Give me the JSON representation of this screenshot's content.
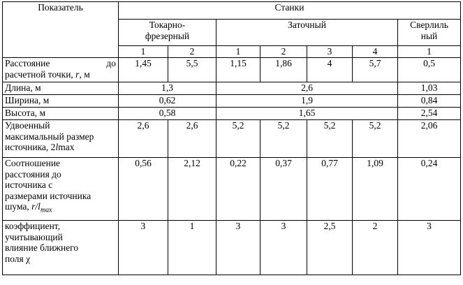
{
  "header": {
    "indicator": "Показатель",
    "machines": "Станки",
    "turning_milling_line1": "Токарно-",
    "turning_milling_line2": "фрезерный",
    "sharpening": "Заточный",
    "drilling_line1": "Сверлиль",
    "drilling_line2": "ный",
    "nums": [
      "1",
      "2",
      "1",
      "2",
      "3",
      "4",
      "1"
    ]
  },
  "rows": {
    "distance": {
      "label_a": "Расстояние",
      "label_b": "до",
      "label_c": "расчетной точки,",
      "label_r": "r",
      "label_unit": ", м",
      "values": [
        "1,45",
        "5,5",
        "1,15",
        "1,86",
        "4",
        "5,7",
        "0,5"
      ]
    },
    "length": {
      "label": "Длина, м",
      "values": [
        "1,3",
        "2,6",
        "1,03"
      ]
    },
    "width": {
      "label": "Ширина, м",
      "values": [
        "0,62",
        "1,9",
        "0,84"
      ]
    },
    "height": {
      "label": "Высота, м",
      "values": [
        "0,58",
        "1,65",
        "2,54"
      ]
    },
    "double_size": {
      "label_l1": "Удвоенный",
      "label_l2": "максимальный размер",
      "label_l3a": "источника, 2",
      "label_l3b": "l",
      "label_l3c": "max",
      "values": [
        "2,6",
        "2,6",
        "5,2",
        "5,2",
        "5,2",
        "5,2",
        "2,06"
      ]
    },
    "ratio": {
      "label_l1": "Соотношение",
      "label_l2": "расстояния до",
      "label_l3": "источника с",
      "label_l4": "размерами источника",
      "label_l5a": "шума,",
      "label_l5b": "r/l",
      "label_l5c": "max",
      "values": [
        "0,56",
        "2,12",
        "0,22",
        "0,37",
        "0,77",
        "1,09",
        "0,24"
      ]
    },
    "coefficient": {
      "label_l1": "коэффициент,",
      "label_l2": "учитывающий",
      "label_l3": "влияние ближнего",
      "label_l4": "поля χ",
      "values": [
        "3",
        "1",
        "3",
        "3",
        "2,5",
        "2",
        "3"
      ]
    }
  }
}
